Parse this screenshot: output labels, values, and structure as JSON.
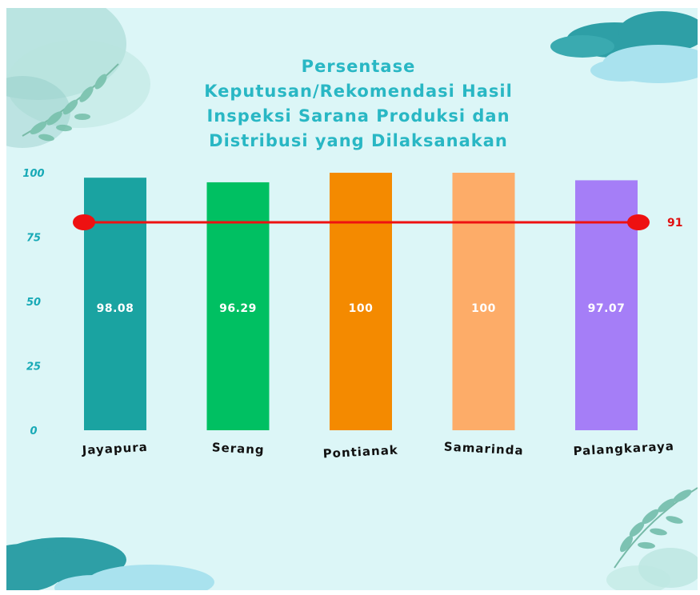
{
  "chart_data": {
    "type": "bar",
    "title_lines": [
      "Persentase",
      "Keputusan/Rekomendasi Hasil",
      "Inspeksi Sarana Produksi dan",
      "Distribusi yang Dilaksanakan"
    ],
    "categories": [
      "Jayapura",
      "Serang",
      "Pontianak",
      "Samarinda",
      "Palangkaraya"
    ],
    "values": [
      98.08,
      96.29,
      100,
      100,
      97.07
    ],
    "value_labels": [
      "98.08",
      "96.29",
      "100",
      "100",
      "97.07"
    ],
    "colors": [
      "#1aa3a1",
      "#00c062",
      "#f48a00",
      "#fdac68",
      "#a57ef7"
    ],
    "yticks": [
      "0",
      "25",
      "50",
      "75",
      "100"
    ],
    "ylim": [
      0,
      100
    ],
    "target": {
      "value": 91,
      "label": "91",
      "color": "#ee1111"
    },
    "xlabel": "",
    "ylabel": "",
    "grid": false,
    "legend": "none"
  }
}
